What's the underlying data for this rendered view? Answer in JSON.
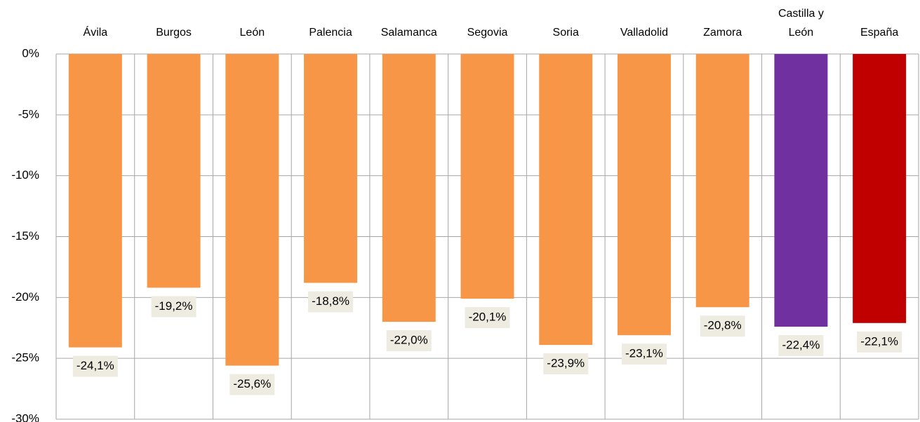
{
  "chart_data": {
    "type": "bar",
    "categories": [
      "Ávila",
      "Burgos",
      "León",
      "Palencia",
      "Salamanca",
      "Segovia",
      "Soria",
      "Valladolid",
      "Zamora",
      "Castilla y León",
      "España"
    ],
    "values": [
      -24.1,
      -19.2,
      -25.6,
      -18.8,
      -22.0,
      -20.1,
      -23.9,
      -23.1,
      -20.8,
      -22.4,
      -22.1
    ],
    "value_labels": [
      "-24,1%",
      "-19,2%",
      "-25,6%",
      "-18,8%",
      "-22,0%",
      "-20,1%",
      "-23,9%",
      "-23,1%",
      "-20,8%",
      "-22,4%",
      "-22,1%"
    ],
    "colors": [
      "#f79646",
      "#f79646",
      "#f79646",
      "#f79646",
      "#f79646",
      "#f79646",
      "#f79646",
      "#f79646",
      "#f79646",
      "#7030a0",
      "#c00000"
    ],
    "ylim": [
      -30,
      0
    ],
    "yticks": [
      {
        "value": 0,
        "label": "0%"
      },
      {
        "value": -5,
        "label": "-5%"
      },
      {
        "value": -10,
        "label": "-10%"
      },
      {
        "value": -15,
        "label": "-15%"
      },
      {
        "value": -20,
        "label": "-20%"
      },
      {
        "value": -25,
        "label": "-25%"
      },
      {
        "value": -30,
        "label": "-30%"
      }
    ],
    "grid": true
  }
}
